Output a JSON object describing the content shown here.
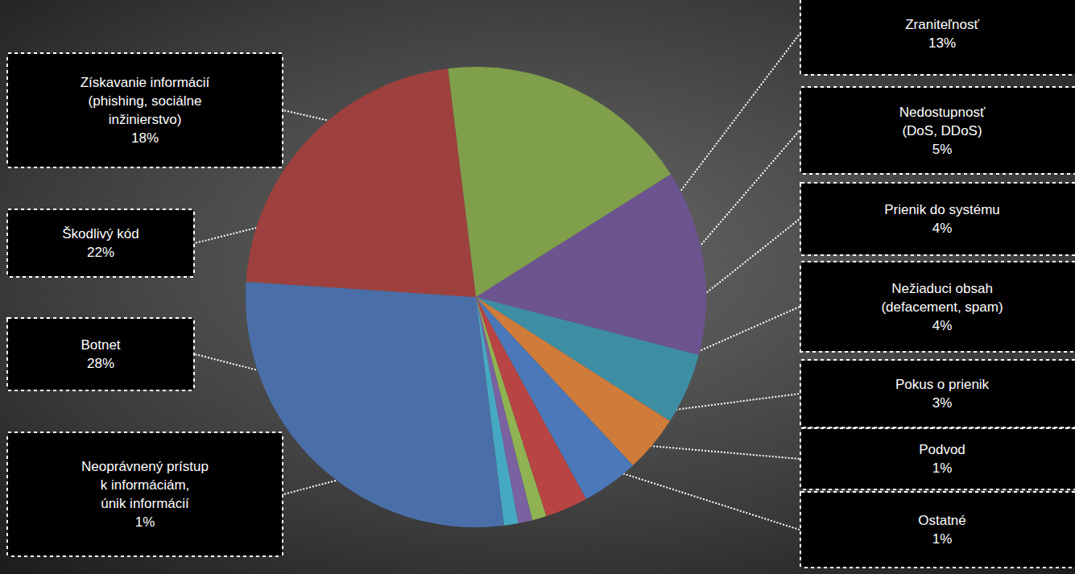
{
  "chart_data": {
    "type": "pie",
    "categories": [
      "Získavanie informácií\n(phishing, sociálne\ninžinierstvo)",
      "Zraniteľnosť",
      "Nedostupnosť\n(DoS, DDoS)",
      "Prienik do systému",
      "Nežiaduci obsah\n(defacement, spam)",
      "Pokus o prienik",
      "Podvod",
      "Ostatné",
      "Neoprávnený prístup\nk informáciám,\núnik informácií",
      "Botnet",
      "Škodlivý kód"
    ],
    "values": [
      18,
      13,
      5,
      4,
      4,
      3,
      1,
      1,
      1,
      28,
      22
    ],
    "value_labels": [
      "18%",
      "13%",
      "5%",
      "4%",
      "4%",
      "3%",
      "1%",
      "1%",
      "1%",
      "28%",
      "22%"
    ],
    "colors": [
      "#7f9f4a",
      "#6b5490",
      "#3e8ea3",
      "#cf7b3a",
      "#4a78b8",
      "#b84444",
      "#8fb352",
      "#7a62a0",
      "#46a9c4",
      "#4a6fa8",
      "#9e413e"
    ],
    "data_labels": true
  }
}
